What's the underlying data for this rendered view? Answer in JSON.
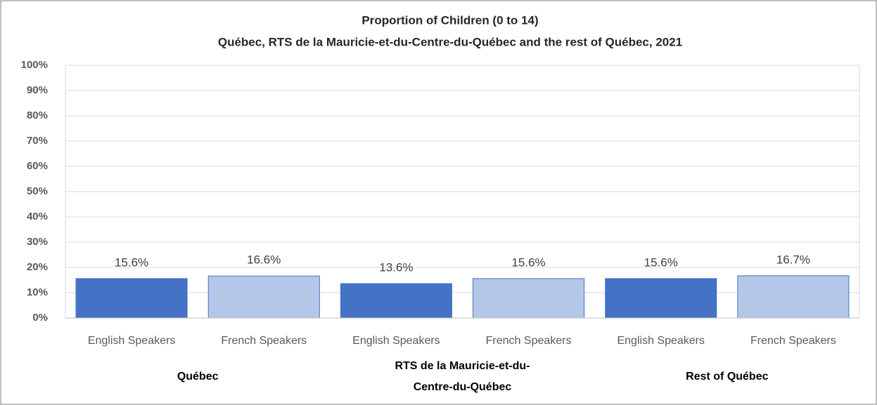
{
  "chart_data": {
    "type": "bar",
    "title": "Proportion of Children (0 to 14)",
    "subtitle": "Québec, RTS de la Mauricie-et-du-Centre-du-Québec and the rest of Québec, 2021",
    "categories": [
      "English Speakers",
      "French Speakers",
      "English Speakers",
      "French Speakers",
      "English Speakers",
      "French Speakers"
    ],
    "groups": [
      "Québec",
      "RTS de la Mauricie-et-du-Centre-du-Québec",
      "Rest of Québec"
    ],
    "values": [
      15.6,
      16.6,
      13.6,
      15.6,
      15.6,
      16.7
    ],
    "value_labels": [
      "15.6%",
      "16.6%",
      "13.6%",
      "15.6%",
      "15.6%",
      "16.7%"
    ],
    "colors": [
      "#4472c4",
      "#b4c7e7",
      "#4472c4",
      "#b4c7e7",
      "#4472c4",
      "#b4c7e7"
    ],
    "ylim": [
      0,
      100
    ],
    "yticks": [
      {
        "value": 0,
        "label": "0%"
      },
      {
        "value": 10,
        "label": "10%"
      },
      {
        "value": 20,
        "label": "20%"
      },
      {
        "value": 30,
        "label": "30%"
      },
      {
        "value": 40,
        "label": "40%"
      },
      {
        "value": 50,
        "label": "50%"
      },
      {
        "value": 60,
        "label": "60%"
      },
      {
        "value": 70,
        "label": "70%"
      },
      {
        "value": 80,
        "label": "80%"
      },
      {
        "value": 90,
        "label": "90%"
      },
      {
        "value": 100,
        "label": "100%"
      }
    ],
    "grid": true
  }
}
